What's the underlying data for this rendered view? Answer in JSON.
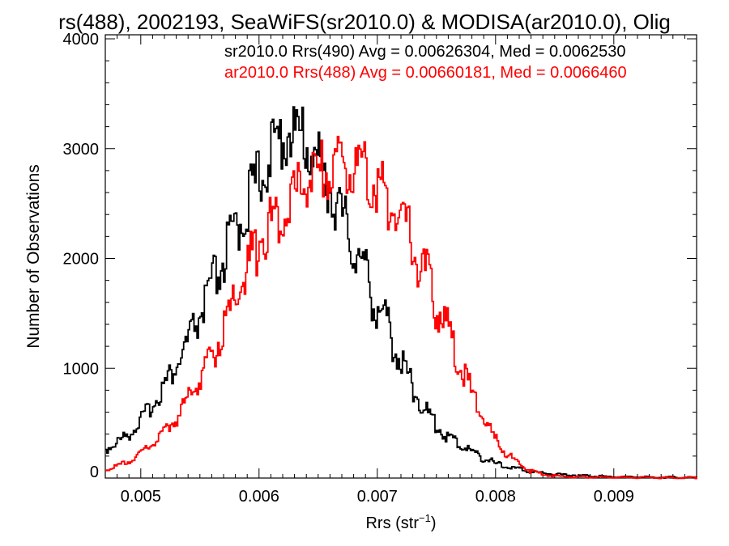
{
  "chart_data": {
    "type": "line",
    "title": "rs(488), 2002193, SeaWiFS(sr2010.0) & MODISA(ar2010.0), Olig",
    "xlabel_main": "Rrs (str",
    "xlabel_sup": "−1",
    "xlabel_close": ")",
    "ylabel": "Number of Observations",
    "xlim": [
      0.0047,
      0.0097
    ],
    "ylim": [
      0,
      4000
    ],
    "x_ticks": [
      {
        "value": 0.005,
        "label": "0.005"
      },
      {
        "value": 0.006,
        "label": "0.006"
      },
      {
        "value": 0.007,
        "label": "0.007"
      },
      {
        "value": 0.008,
        "label": "0.008"
      },
      {
        "value": 0.009,
        "label": "0.009"
      }
    ],
    "y_ticks": [
      {
        "value": 0,
        "label": "0"
      },
      {
        "value": 1000,
        "label": "1000"
      },
      {
        "value": 2000,
        "label": "2000"
      },
      {
        "value": 3000,
        "label": "3000"
      },
      {
        "value": 4000,
        "label": "4000"
      }
    ],
    "grid": false,
    "legend_position": "top-right",
    "annotations": [
      {
        "text": "sr2010.0 Rrs(490) Avg = 0.00626304, Med = 0.0062530",
        "color": "#000000"
      },
      {
        "text": "ar2010.0 Rrs(488) Avg = 0.00660181, Med = 0.0066460",
        "color": "#ff0000"
      }
    ],
    "series": [
      {
        "color": "#000000",
        "x": [
          0.0047,
          0.0048,
          0.0049,
          0.005,
          0.0051,
          0.0052,
          0.0053,
          0.0054,
          0.0055,
          0.0056,
          0.0057,
          0.0058,
          0.0059,
          0.006,
          0.0061,
          0.0062,
          0.0063,
          0.0064,
          0.0065,
          0.0066,
          0.0067,
          0.0068,
          0.0069,
          0.007,
          0.0071,
          0.0072,
          0.0073,
          0.0074,
          0.0075,
          0.0076,
          0.0077,
          0.0078,
          0.0079,
          0.008,
          0.0081,
          0.0082,
          0.0083,
          0.0084,
          0.0085,
          0.0086,
          0.0087,
          0.0088,
          0.0089,
          0.009,
          0.0091,
          0.0092,
          0.0093,
          0.0094,
          0.0095,
          0.0096,
          0.0097
        ],
        "y": [
          260,
          330,
          410,
          530,
          680,
          860,
          1030,
          1250,
          1490,
          1740,
          2000,
          2250,
          2520,
          2760,
          2960,
          3130,
          3150,
          3050,
          2880,
          2620,
          2360,
          2100,
          1850,
          1560,
          1330,
          1050,
          820,
          620,
          470,
          370,
          300,
          240,
          180,
          130,
          100,
          80,
          60,
          45,
          35,
          30,
          25,
          20,
          15,
          12,
          10,
          10,
          8,
          7,
          6,
          5,
          5
        ]
      },
      {
        "color": "#ff0000",
        "x": [
          0.0047,
          0.0048,
          0.0049,
          0.005,
          0.0051,
          0.0052,
          0.0053,
          0.0054,
          0.0055,
          0.0056,
          0.0057,
          0.0058,
          0.0059,
          0.006,
          0.0061,
          0.0062,
          0.0063,
          0.0064,
          0.0065,
          0.0066,
          0.0067,
          0.0068,
          0.0069,
          0.007,
          0.0071,
          0.0072,
          0.0073,
          0.0074,
          0.0075,
          0.0076,
          0.0077,
          0.0078,
          0.0079,
          0.008,
          0.0081,
          0.0082,
          0.0083,
          0.0084,
          0.0085,
          0.0086,
          0.0087,
          0.0088,
          0.0089,
          0.009,
          0.0091,
          0.0092,
          0.0093,
          0.0094,
          0.0095,
          0.0096,
          0.0097
        ],
        "y": [
          80,
          110,
          160,
          230,
          320,
          430,
          560,
          720,
          900,
          1120,
          1360,
          1620,
          1900,
          2160,
          2340,
          2480,
          2600,
          2700,
          2780,
          2840,
          2870,
          2850,
          2780,
          2680,
          2500,
          2340,
          2120,
          1850,
          1600,
          1300,
          1000,
          750,
          520,
          340,
          210,
          120,
          60,
          35,
          20,
          15,
          12,
          10,
          8,
          6,
          5,
          5,
          4,
          3,
          3,
          3,
          3
        ]
      }
    ]
  }
}
